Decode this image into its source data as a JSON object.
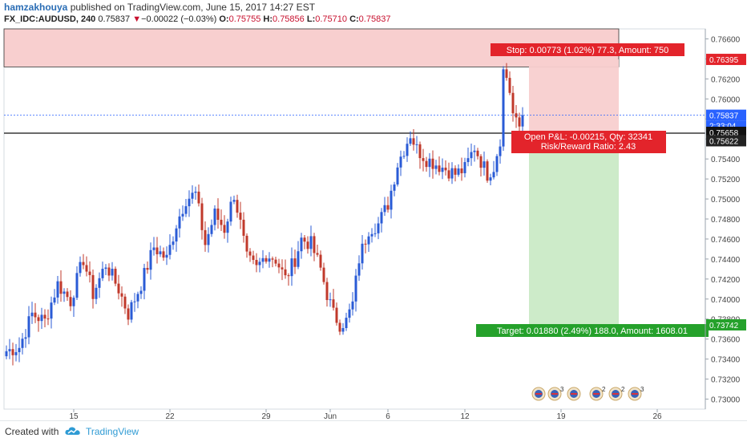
{
  "header": {
    "author": "hamzakhouya",
    "published_text": "published on TradingView.com, June 15, 2017 14:27 EST",
    "symbol": "FX_IDC:AUDUSD, 240",
    "last": "0.75837",
    "change_arrow": "▼",
    "change": "−0.00022 (−0.03%)",
    "o_label": "O:",
    "o_value": "0.75755",
    "h_label": "H:",
    "h_value": "0.75856",
    "l_label": "L:",
    "l_value": "0.75710",
    "c_label": "C:",
    "c_value": "0.75837"
  },
  "footer": {
    "created_with": "Created with",
    "brand": "TradingView"
  },
  "colors": {
    "up": "#2a5bd6",
    "down": "#c0392b",
    "stop_zone": "#f8cfcf",
    "target_zone": "#cdebc9",
    "stop_label_bg": "#e3242b",
    "target_label_bg": "#25a12b",
    "price_line": "#2962ff"
  },
  "chart_data": {
    "type": "candlestick",
    "timeframe": "240",
    "ylim": [
      0.729,
      0.767
    ],
    "y_ticks": [
      "0.76600",
      "0.76400",
      "0.76200",
      "0.76000",
      "0.75800",
      "0.75600",
      "0.75400",
      "0.75200",
      "0.75000",
      "0.74800",
      "0.74600",
      "0.74400",
      "0.74200",
      "0.74000",
      "0.73800",
      "0.73600",
      "0.73400",
      "0.73200",
      "0.73000"
    ],
    "x_ticks": [
      {
        "label": "15",
        "i": 21
      },
      {
        "label": "22",
        "i": 51
      },
      {
        "label": "29",
        "i": 81
      },
      {
        "label": "Jun",
        "i": 101
      },
      {
        "label": "6",
        "i": 119
      },
      {
        "label": "12",
        "i": 143
      },
      {
        "label": "19",
        "i": 173
      },
      {
        "label": "26",
        "i": 203
      }
    ],
    "anchors": [
      [
        0,
        0.7348
      ],
      [
        4,
        0.7352
      ],
      [
        8,
        0.7385
      ],
      [
        12,
        0.7378
      ],
      [
        16,
        0.7415
      ],
      [
        20,
        0.7398
      ],
      [
        24,
        0.744
      ],
      [
        27,
        0.7405
      ],
      [
        31,
        0.7435
      ],
      [
        35,
        0.741
      ],
      [
        38,
        0.7385
      ],
      [
        42,
        0.7415
      ],
      [
        46,
        0.7452
      ],
      [
        50,
        0.744
      ],
      [
        53,
        0.7475
      ],
      [
        56,
        0.75
      ],
      [
        59,
        0.7505
      ],
      [
        62,
        0.7455
      ],
      [
        65,
        0.7485
      ],
      [
        68,
        0.747
      ],
      [
        71,
        0.7505
      ],
      [
        73,
        0.7475
      ],
      [
        75,
        0.744
      ],
      [
        78,
        0.743
      ],
      [
        81,
        0.7445
      ],
      [
        84,
        0.744
      ],
      [
        87,
        0.742
      ],
      [
        90,
        0.744
      ],
      [
        92,
        0.746
      ],
      [
        95,
        0.7455
      ],
      [
        98,
        0.743
      ],
      [
        100,
        0.7405
      ],
      [
        102,
        0.7385
      ],
      [
        104,
        0.7375
      ],
      [
        106,
        0.7378
      ],
      [
        108,
        0.7395
      ],
      [
        110,
        0.744
      ],
      [
        113,
        0.747
      ],
      [
        116,
        0.7475
      ],
      [
        119,
        0.7495
      ],
      [
        122,
        0.7535
      ],
      [
        124,
        0.755
      ],
      [
        126,
        0.7565
      ],
      [
        128,
        0.755
      ],
      [
        131,
        0.754
      ],
      [
        134,
        0.7535
      ],
      [
        137,
        0.753
      ],
      [
        140,
        0.7525
      ],
      [
        143,
        0.753
      ],
      [
        146,
        0.7552
      ],
      [
        148,
        0.7538
      ],
      [
        150,
        0.7525
      ],
      [
        152,
        0.7532
      ],
      [
        154,
        0.756
      ],
      [
        155,
        0.7628
      ],
      [
        156,
        0.7622
      ],
      [
        157,
        0.7608
      ],
      [
        158,
        0.7585
      ],
      [
        159,
        0.7575
      ],
      [
        160,
        0.7572
      ],
      [
        161,
        0.7584
      ]
    ],
    "last_index": 161,
    "current_price": 0.75837,
    "support_level": 0.75658,
    "position": {
      "entry": 0.75622,
      "stop": 0.76395,
      "target": 0.73742,
      "start_index": 161,
      "end_index": 191
    },
    "stop_zone_top": 0.767,
    "stop_zone_bottom": 0.7632,
    "price_labels": {
      "stop": "0.76395",
      "current": "0.75837",
      "countdown": "2:33:04",
      "support": "0.75658",
      "entry": "0.75622",
      "target": "0.73742"
    },
    "annotations": {
      "stop": "Stop: 0.00773 (1.02%) 77.3, Amount: 750",
      "open_pnl": "Open P&L: -0.00215, Qty: 32341",
      "risk_reward": "Risk/Reward Ratio: 2.43",
      "target": "Target: 0.01880 (2.49%) 188.0, Amount: 1608.01"
    },
    "event_icons": [
      {
        "i": 166,
        "badge": ""
      },
      {
        "i": 171,
        "badge": "3"
      },
      {
        "i": 177,
        "badge": ""
      },
      {
        "i": 184,
        "badge": "2"
      },
      {
        "i": 190,
        "badge": "2"
      },
      {
        "i": 196,
        "badge": "3"
      }
    ]
  }
}
